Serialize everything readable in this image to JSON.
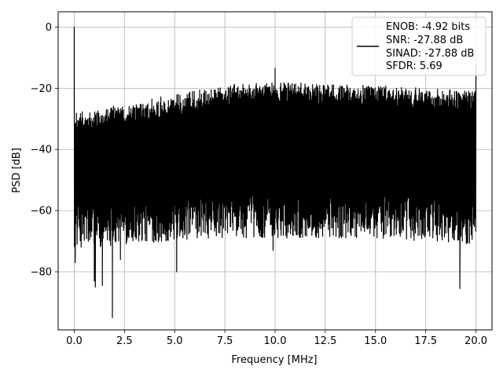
{
  "chart_data": {
    "type": "line",
    "title": "",
    "xlabel": "Frequency [MHz]",
    "ylabel": "PSD [dB]",
    "xlim": [
      -0.8,
      20.8
    ],
    "ylim": [
      -99,
      5
    ],
    "xticks": [
      0.0,
      2.5,
      5.0,
      7.5,
      10.0,
      12.5,
      15.0,
      17.5,
      20.0
    ],
    "xtick_labels": [
      "0.0",
      "2.5",
      "5.0",
      "7.5",
      "10.0",
      "12.5",
      "15.0",
      "17.5",
      "20.0"
    ],
    "yticks": [
      0,
      -20,
      -40,
      -60,
      -80
    ],
    "ytick_labels": [
      "0",
      "−20",
      "−40",
      "−60",
      "−80"
    ],
    "grid": true,
    "legend_position": "top-right",
    "legend_entries": [
      "ENOB: -4.92 bits",
      "SNR: -27.88 dB",
      "SINAD: -27.88 dB",
      "SFDR: 5.69"
    ],
    "series": [
      {
        "color": "#000000",
        "x_range_mhz": [
          0,
          20
        ],
        "envelope": {
          "x": [
            0,
            1,
            2.5,
            5,
            7.5,
            10,
            12.5,
            15,
            17.5,
            20
          ],
          "upper_db": [
            -28,
            -27,
            -25,
            -22,
            -19,
            -18,
            -18.5,
            -19,
            -20,
            -21
          ],
          "lower_db": [
            -68,
            -68,
            -67,
            -66,
            -65,
            -65,
            -65,
            -65,
            -66,
            -67
          ]
        },
        "peaks": [
          {
            "x": 0.0,
            "y": 0.0
          },
          {
            "x": 10.0,
            "y": -13.5
          },
          {
            "x": 20.0,
            "y": -12.0
          }
        ],
        "dips": [
          {
            "x": 0.05,
            "y": -77
          },
          {
            "x": 1.0,
            "y": -83
          },
          {
            "x": 1.05,
            "y": -85
          },
          {
            "x": 1.4,
            "y": -84.5
          },
          {
            "x": 1.9,
            "y": -95
          },
          {
            "x": 2.3,
            "y": -76
          },
          {
            "x": 5.1,
            "y": -80
          },
          {
            "x": 9.9,
            "y": -73
          },
          {
            "x": 19.2,
            "y": -85.5
          }
        ]
      }
    ]
  }
}
